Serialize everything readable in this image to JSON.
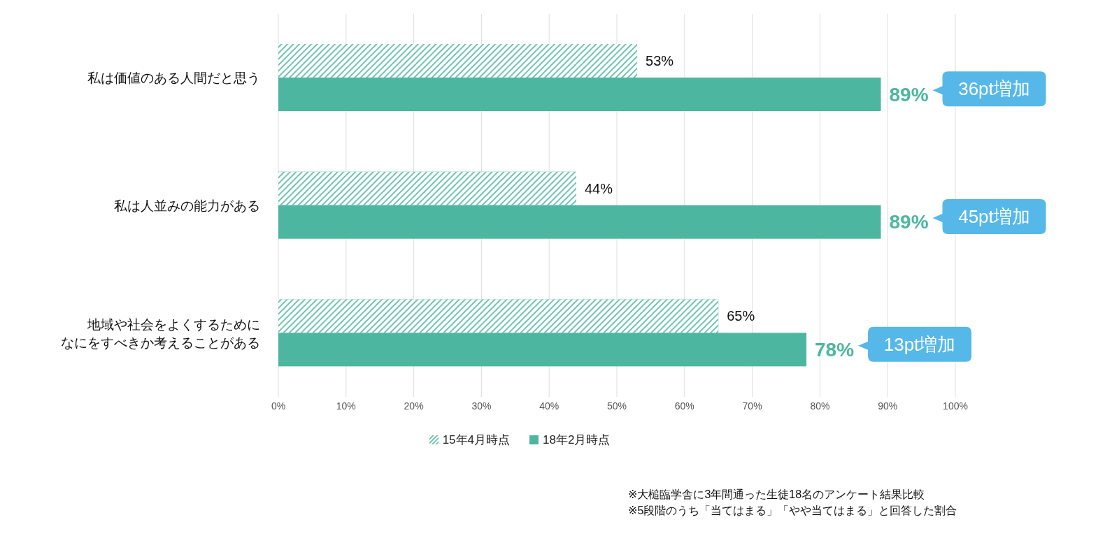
{
  "chart_data": {
    "type": "bar",
    "orientation": "horizontal",
    "categories": [
      "私は価値のある人間だと思う",
      "私は人並みの能力がある",
      "地域や社会をよくするためになにをすべきか考えることがある"
    ],
    "series": [
      {
        "name": "15年4月時点",
        "color": "#4db6a0",
        "values": [
          53,
          44,
          65
        ],
        "value_labels": [
          "53%",
          "44%",
          "65%"
        ]
      },
      {
        "name": "18年2月時点",
        "color": "#4db6a0",
        "values": [
          89,
          89,
          78
        ],
        "value_labels": [
          "89%",
          "89%",
          "78%"
        ]
      }
    ],
    "xlim": [
      0,
      100
    ],
    "xticks": [
      {
        "value": 0,
        "label": "0%"
      },
      {
        "value": 10,
        "label": "10%"
      },
      {
        "value": 20,
        "label": "20%"
      },
      {
        "value": 30,
        "label": "30%"
      },
      {
        "value": 40,
        "label": "40%"
      },
      {
        "value": 50,
        "label": "50%"
      },
      {
        "value": 60,
        "label": "60%"
      },
      {
        "value": 70,
        "label": "70%"
      },
      {
        "value": 80,
        "label": "80%"
      },
      {
        "value": 90,
        "label": "90%"
      },
      {
        "value": 100,
        "label": "100%"
      }
    ],
    "grid": "x",
    "legend": "bottom",
    "annotations": [
      "36pt増加",
      "45pt増加",
      "13pt増加",
      "※大槌臨学舎に3年間通った生徒18名のアンケート結果比較",
      "※5段階のうち「当てはまる」「やや当てはまる」と回答した割合"
    ]
  }
}
